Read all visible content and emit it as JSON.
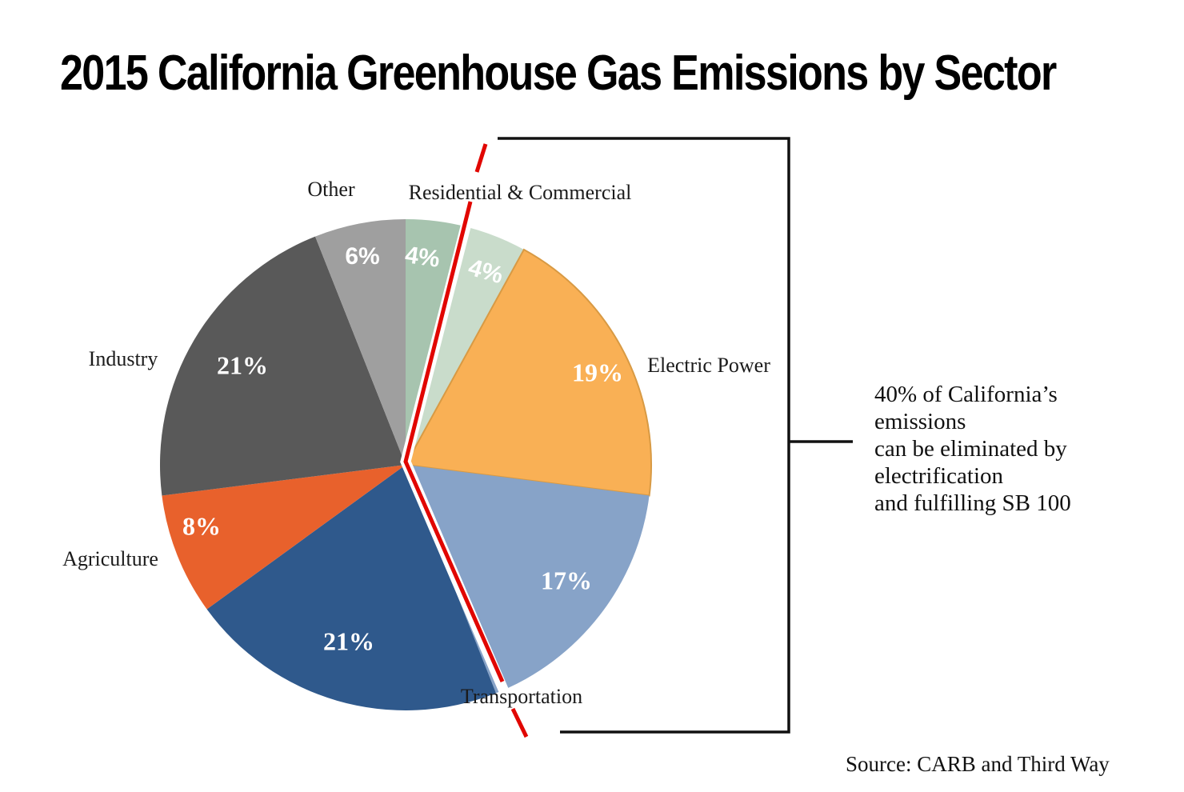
{
  "chart_data": {
    "type": "pie",
    "title": "2015 California Greenhouse Gas Emissions by Sector",
    "direction": "clockwise",
    "start_angle_deg": 0,
    "slices": [
      {
        "label": "Residential & Commercial",
        "value": 4,
        "pct_label": "4%",
        "color": "#a7c4af",
        "in_40pct_group": false
      },
      {
        "label": "Residential & Commercial",
        "value": 4,
        "pct_label": "4%",
        "color": "#c9dccb",
        "in_40pct_group": true
      },
      {
        "label": "Electric Power",
        "value": 19,
        "pct_label": "19%",
        "color": "#f9b055",
        "edge": "#d89a44",
        "in_40pct_group": true
      },
      {
        "label": "Transportation",
        "value": 17,
        "pct_label": "17%",
        "color": "#87a3c8",
        "in_40pct_group": true
      },
      {
        "label": "Transportation",
        "value": 21,
        "pct_label": "21%",
        "color": "#2f598c",
        "in_40pct_group": false
      },
      {
        "label": "Agriculture",
        "value": 8,
        "pct_label": "8%",
        "color": "#e8612c",
        "in_40pct_group": false
      },
      {
        "label": "Industry",
        "value": 21,
        "pct_label": "21%",
        "color": "#595959",
        "in_40pct_group": false
      },
      {
        "label": "Other",
        "value": 6,
        "pct_label": "6%",
        "color": "#9f9f9f",
        "in_40pct_group": false
      }
    ],
    "highlight": {
      "percent": 40,
      "line_color": "#e10600",
      "bracket_color": "#111111",
      "description_lines": [
        "40% of California’s",
        "emissions",
        "can be eliminated by",
        "electrification",
        "and fulfilling SB 100"
      ]
    },
    "source": "Source: CARB and Third Way"
  }
}
